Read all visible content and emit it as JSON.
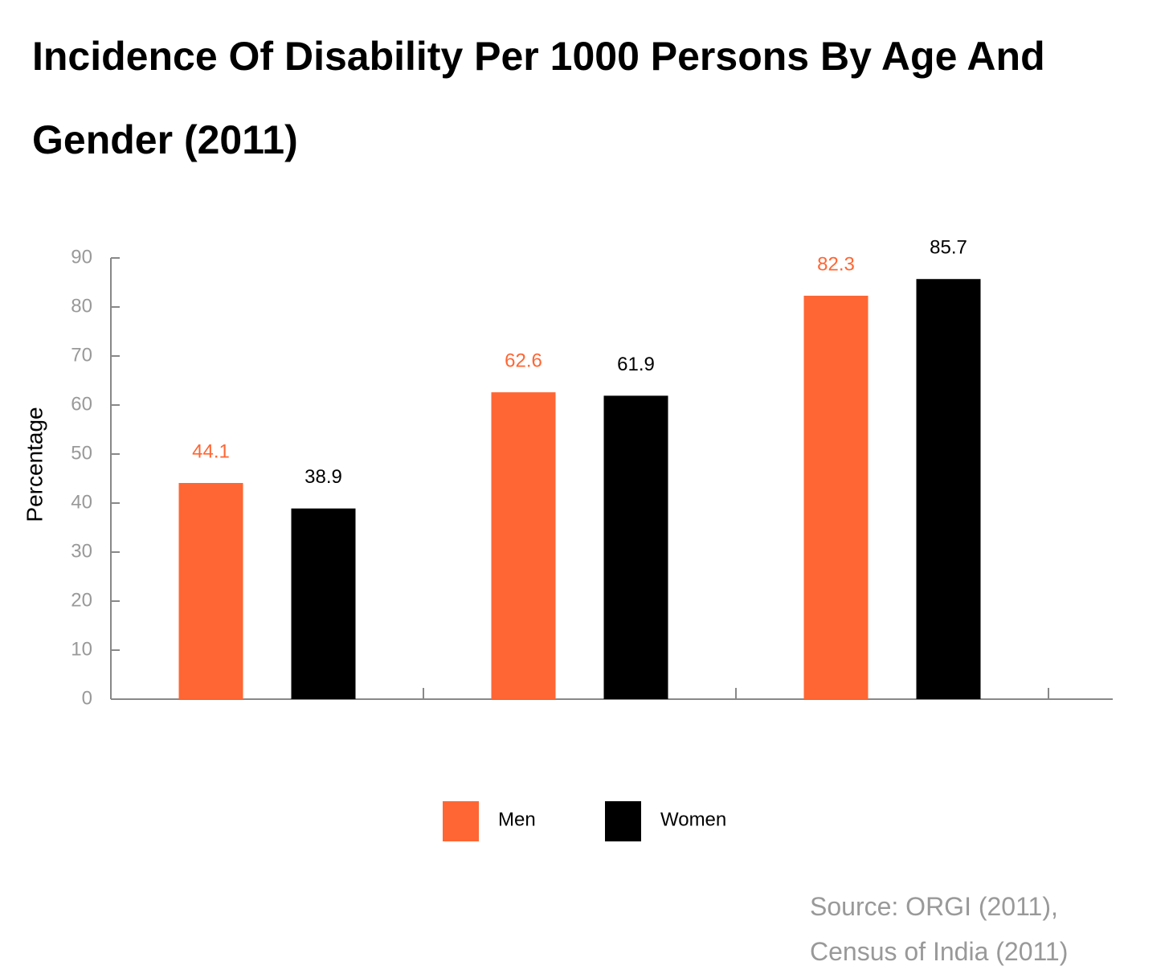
{
  "chart_data": {
    "type": "bar",
    "title": "Incidence Of Disability Per 1000 Persons By Age And Gender (2011)",
    "y_label": "Percentage",
    "categories": [
      null,
      null,
      null
    ],
    "series": [
      {
        "name": "Men",
        "color": "#ff6633",
        "values": [
          44.1,
          62.6,
          82.3
        ]
      },
      {
        "name": "Women",
        "color": "#000000",
        "values": [
          38.9,
          61.9,
          85.7
        ]
      }
    ],
    "ylim": [
      0,
      90
    ],
    "yticks": [
      0,
      10,
      20,
      30,
      40,
      50,
      60,
      70,
      80,
      90
    ],
    "source": "Source: ORGI (2011), Census of India (2011)"
  }
}
